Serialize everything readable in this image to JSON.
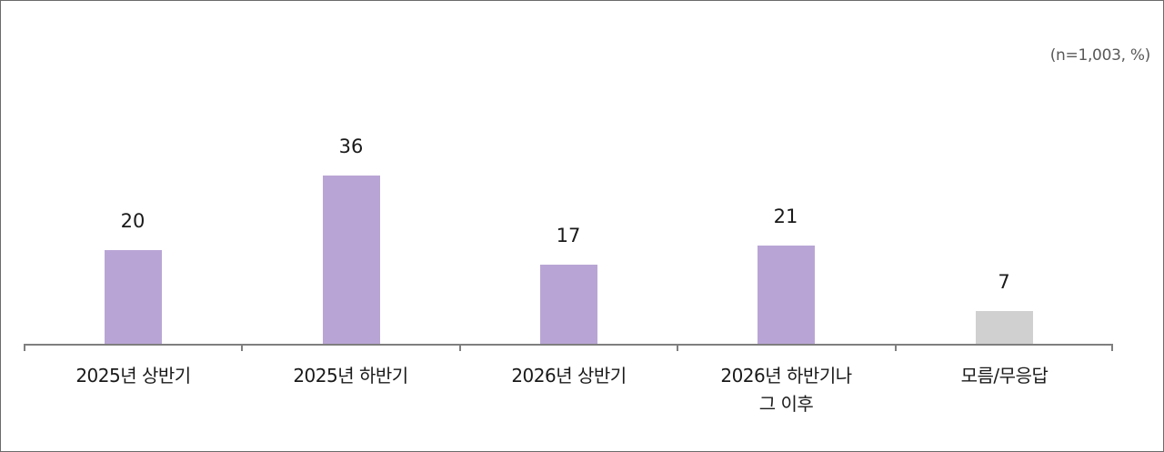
{
  "chart_data": {
    "type": "bar",
    "title": "",
    "note": "(n=1,003, %)",
    "categories": [
      "2025년 상반기",
      "2025년 하반기",
      "2026년 상반기",
      "2026년 하반기나\n그 이후",
      "모름/무응답"
    ],
    "category_lines": [
      [
        "2025년 상반기"
      ],
      [
        "2025년 하반기"
      ],
      [
        "2026년 상반기"
      ],
      [
        "2026년 하반기나",
        "그 이후"
      ],
      [
        "모름/무응답"
      ]
    ],
    "values": [
      20,
      36,
      17,
      21,
      7
    ],
    "value_labels": [
      "20",
      "36",
      "17",
      "21",
      "7"
    ],
    "colors": [
      "#b9a5d5",
      "#b9a5d5",
      "#b9a5d5",
      "#b9a5d5",
      "#d0d0d0"
    ],
    "xlabel": "",
    "ylabel": "",
    "ylim": [
      0,
      40
    ],
    "grid": false,
    "legend": null,
    "unit": "%"
  }
}
